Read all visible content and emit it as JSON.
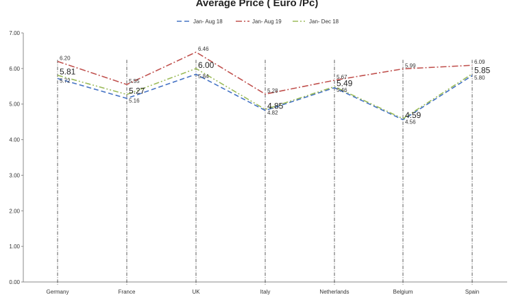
{
  "chart_data": {
    "type": "line",
    "title": "Average Price ( Euro /Pc)",
    "categories": [
      "Germany",
      "France",
      "UK",
      "Italy",
      "Netherlands",
      "Belgium",
      "Spain"
    ],
    "ylim": [
      0,
      7
    ],
    "yticks": [
      "0.00",
      "1.00",
      "2.00",
      "3.00",
      "4.00",
      "5.00",
      "6.00",
      "7.00"
    ],
    "grid": false,
    "legend_position": "top",
    "series": [
      {
        "name": "Jan- Aug 18",
        "color": "#4472c4",
        "dash": "dashed",
        "values": [
          5.72,
          5.16,
          5.84,
          4.82,
          5.46,
          4.56,
          5.8
        ],
        "labels": [
          "5.72",
          "5.16",
          "5.84",
          "4.82",
          "5.46",
          "4.56",
          "5.80"
        ],
        "label_size": "small"
      },
      {
        "name": "Jan- Aug 19",
        "color": "#c0504d",
        "dash": "dash-dot",
        "values": [
          6.2,
          5.55,
          6.46,
          5.28,
          5.67,
          5.99,
          6.09
        ],
        "labels": [
          "6.20",
          "5.55",
          "6.46",
          "5.28",
          "5.67",
          "5.99",
          "6.09"
        ],
        "label_size": "small"
      },
      {
        "name": "Jan- Dec 18",
        "color": "#9bbb59",
        "dash": "dash-dot-dot",
        "values": [
          5.81,
          5.27,
          6.0,
          4.85,
          5.49,
          4.59,
          5.85
        ],
        "labels": [
          "5.81",
          "5.27",
          "6.00",
          "4.85",
          "5.49",
          "4.59",
          "5.85"
        ],
        "label_size": "large"
      }
    ]
  }
}
